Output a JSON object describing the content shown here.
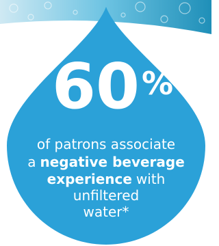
{
  "headline": {
    "number": 60,
    "symbol": "%"
  },
  "caption": {
    "line1": "of patrons associate",
    "line2": [
      "a",
      "negative beverage"
    ],
    "line3": [
      "experience",
      "with"
    ],
    "line4": "unfiltered",
    "line5": "water*"
  }
}
